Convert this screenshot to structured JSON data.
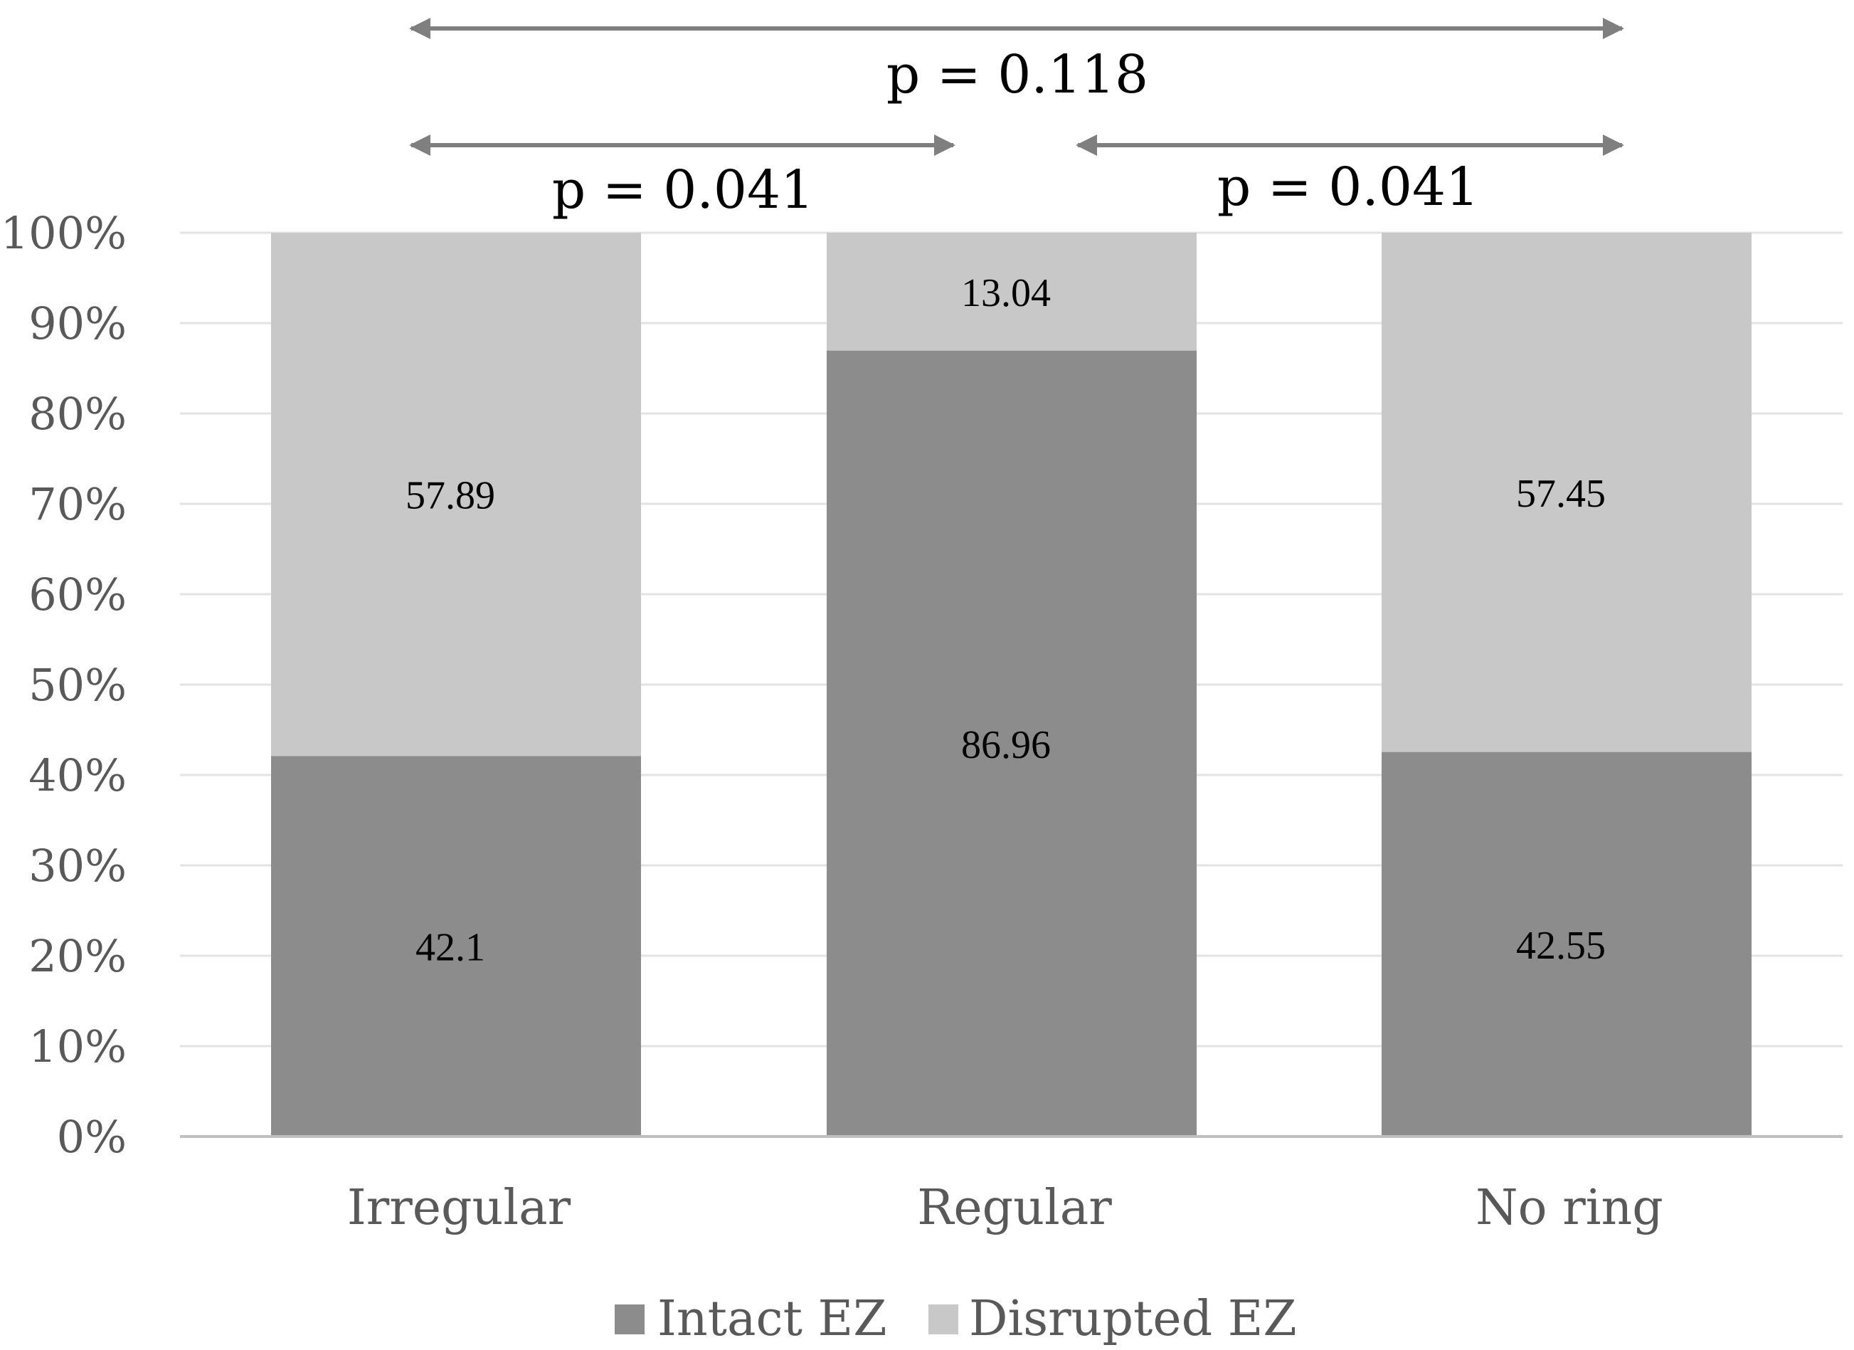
{
  "chart_data": {
    "type": "bar",
    "stacked": true,
    "categories": [
      "Irregular",
      "Regular",
      "No ring"
    ],
    "series": [
      {
        "name": "Intact EZ",
        "values": [
          42.1,
          86.96,
          42.55
        ],
        "labels": [
          "42.1",
          "86.96",
          "42.55"
        ],
        "color": "#8c8c8c"
      },
      {
        "name": "Disrupted EZ",
        "values": [
          57.89,
          13.04,
          57.45
        ],
        "labels": [
          "57.89",
          "13.04",
          "57.45"
        ],
        "color": "#c8c8c8"
      }
    ],
    "ylim": [
      0,
      100
    ],
    "yticks": [
      "0%",
      "10%",
      "20%",
      "30%",
      "40%",
      "50%",
      "60%",
      "70%",
      "80%",
      "90%",
      "100%"
    ],
    "grid": true,
    "legend_position": "bottom",
    "annotations": [
      {
        "text": "p = 0.118",
        "from": "Irregular",
        "to": "No ring",
        "level": 2
      },
      {
        "text": "p = 0.041",
        "from": "Irregular",
        "to": "Regular",
        "level": 1
      },
      {
        "text": "p = 0.041",
        "from": "Regular",
        "to": "No ring",
        "level": 1
      }
    ],
    "colors": {
      "grid": "#e3e3e3",
      "axis": "#bfbfbf",
      "arrow": "#7f7f7f"
    }
  }
}
